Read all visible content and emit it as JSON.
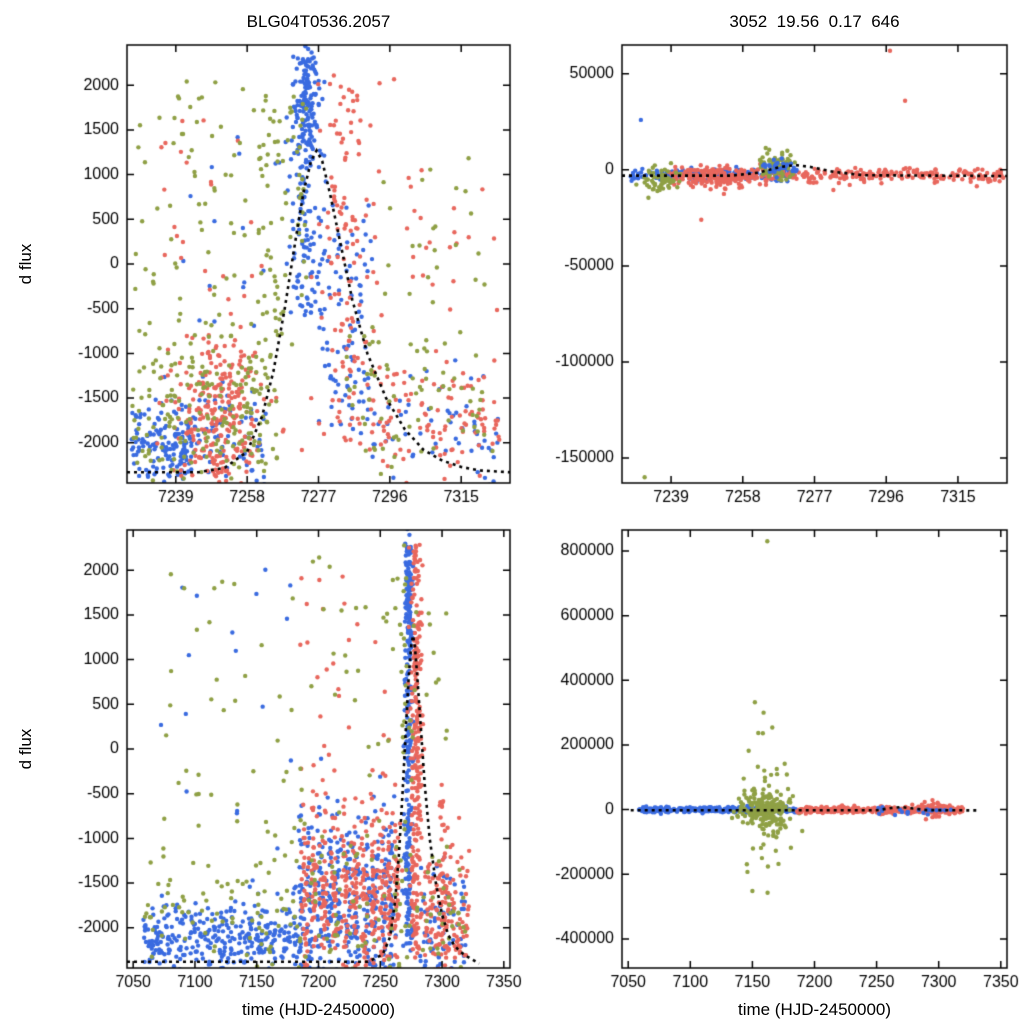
{
  "colors": {
    "blue": "#3a6be0",
    "red": "#e8675d",
    "green": "#8fa045",
    "model": "#000000",
    "axis": "#000000",
    "background": "#ffffff"
  },
  "labels": {
    "title_left": "BLG04T0536.2057",
    "title_right": "3052  19.56  0.17  646",
    "ylabel": "d flux",
    "xlabel": "time (HJD-2450000)"
  },
  "chart_data": [
    {
      "id": "top-left",
      "type": "scatter",
      "title": "BLG04T0536.2057",
      "xlabel": "",
      "ylabel": "d flux",
      "xlim": [
        7226,
        7328
      ],
      "ylim": [
        -2450,
        2450
      ],
      "xticks": [
        7239,
        7258,
        7277,
        7296,
        7315
      ],
      "yticks": [
        -2000,
        -1500,
        -1000,
        -500,
        0,
        500,
        1000,
        1500,
        2000
      ],
      "grid": false,
      "legend": "none",
      "series_names": [
        "site-blue",
        "site-red",
        "site-green"
      ],
      "clusters": [
        {
          "c": "blue",
          "n": 160,
          "x": [
            "u",
            7227,
            7244
          ],
          "y": [
            "g",
            -2050,
            260
          ]
        },
        {
          "c": "blue",
          "n": 70,
          "x": [
            "u",
            7244,
            7263
          ],
          "y": [
            "g",
            -1950,
            300
          ]
        },
        {
          "c": "blue",
          "n": 170,
          "x": [
            "g",
            7273.5,
            2.2
          ],
          "y": [
            "u",
            -600,
            2300
          ]
        },
        {
          "c": "blue",
          "n": 90,
          "x": [
            "g",
            7274,
            1.6
          ],
          "y": [
            "g",
            1850,
            330
          ]
        },
        {
          "c": "blue",
          "n": 90,
          "x": [
            "u",
            7277,
            7292
          ],
          "y": [
            "u",
            -1900,
            700
          ]
        },
        {
          "c": "blue",
          "n": 60,
          "x": [
            "u",
            7290,
            7326
          ],
          "y": [
            "g",
            -1900,
            350
          ]
        },
        {
          "c": "blue",
          "n": 15,
          "x": [
            "u",
            7230,
            7268
          ],
          "y": [
            "u",
            -700,
            1600
          ]
        },
        {
          "c": "red",
          "n": 280,
          "x": [
            "g",
            7250,
            6
          ],
          "y": [
            "g",
            -1650,
            480
          ]
        },
        {
          "c": "red",
          "n": 20,
          "x": [
            "u",
            7235,
            7262
          ],
          "y": [
            "u",
            -700,
            2000
          ]
        },
        {
          "c": "red",
          "n": 130,
          "x": [
            "g",
            7284,
            3.5
          ],
          "y": [
            "u",
            -2100,
            2150
          ]
        },
        {
          "c": "red",
          "n": 110,
          "x": [
            "u",
            7290,
            7327
          ],
          "y": [
            "g",
            -1750,
            420
          ]
        },
        {
          "c": "red",
          "n": 25,
          "x": [
            "u",
            7292,
            7325
          ],
          "y": [
            "u",
            -600,
            1100
          ]
        },
        {
          "c": "green",
          "n": 240,
          "x": [
            "u",
            7227,
            7266
          ],
          "y": [
            "g",
            -1600,
            620
          ]
        },
        {
          "c": "green",
          "n": 60,
          "x": [
            "u",
            7228,
            7268
          ],
          "y": [
            "u",
            -500,
            2100
          ]
        },
        {
          "c": "green",
          "n": 70,
          "x": [
            "u",
            7261,
            7275
          ],
          "y": [
            "u",
            -900,
            1900
          ]
        },
        {
          "c": "green",
          "n": 80,
          "x": [
            "u",
            7284,
            7326
          ],
          "y": [
            "g",
            -1500,
            600
          ]
        },
        {
          "c": "green",
          "n": 20,
          "x": [
            "u",
            7286,
            7324
          ],
          "y": [
            "u",
            -400,
            1200
          ]
        }
      ],
      "points": [],
      "model": [
        [
          7226,
          -2330
        ],
        [
          7245,
          -2330
        ],
        [
          7252,
          -2280
        ],
        [
          7258,
          -2100
        ],
        [
          7262,
          -1700
        ],
        [
          7265,
          -1200
        ],
        [
          7268,
          -500
        ],
        [
          7271,
          300
        ],
        [
          7273,
          800
        ],
        [
          7275,
          1150
        ],
        [
          7276.5,
          1270
        ],
        [
          7278,
          1150
        ],
        [
          7280,
          800
        ],
        [
          7283,
          200
        ],
        [
          7286,
          -400
        ],
        [
          7290,
          -1000
        ],
        [
          7295,
          -1500
        ],
        [
          7300,
          -1850
        ],
        [
          7305,
          -2080
        ],
        [
          7310,
          -2200
        ],
        [
          7315,
          -2270
        ],
        [
          7320,
          -2310
        ],
        [
          7328,
          -2330
        ]
      ]
    },
    {
      "id": "top-right",
      "type": "scatter",
      "title": "3052  19.56  0.17  646",
      "xlabel": "",
      "ylabel": "",
      "xlim": [
        7226,
        7328
      ],
      "ylim": [
        -163000,
        65000
      ],
      "xticks": [
        7239,
        7258,
        7277,
        7296,
        7315
      ],
      "yticks": [
        -150000,
        -100000,
        -50000,
        0,
        50000
      ],
      "grid": false,
      "legend": "none",
      "series_names": [
        "site-blue",
        "site-red",
        "site-green"
      ],
      "clusters": [
        {
          "c": "blue",
          "n": 190,
          "x": [
            "u",
            7228,
            7272
          ],
          "y": [
            "g",
            -2500,
            1600
          ]
        },
        {
          "c": "red",
          "n": 320,
          "x": [
            "u",
            7238,
            7327
          ],
          "y": [
            "g",
            -2600,
            1800
          ]
        },
        {
          "c": "red",
          "n": 120,
          "x": [
            "g",
            7251,
            5
          ],
          "y": [
            "g",
            -4500,
            2800
          ]
        },
        {
          "c": "green",
          "n": 55,
          "x": [
            "g",
            7236,
            2.5
          ],
          "y": [
            "g",
            -4500,
            3200
          ]
        },
        {
          "c": "green",
          "n": 75,
          "x": [
            "g",
            7267,
            2.5
          ],
          "y": [
            "g",
            1500,
            3500
          ]
        },
        {
          "c": "blue",
          "n": 30,
          "x": [
            "g",
            7268,
            3
          ],
          "y": [
            "g",
            1200,
            2200
          ]
        }
      ],
      "points": [
        [
          "green",
          7232,
          -160000
        ],
        [
          "green",
          7233,
          -14500
        ],
        [
          "green",
          7236,
          -10500
        ],
        [
          "green",
          7265,
          10500
        ],
        [
          "red",
          7247,
          -26000
        ],
        [
          "red",
          7253,
          -12500
        ],
        [
          "red",
          7297,
          62000
        ],
        [
          "red",
          7301,
          36000
        ],
        [
          "red",
          7282,
          -10500
        ],
        [
          "red",
          7320,
          -8500
        ],
        [
          "blue",
          7231,
          26000
        ]
      ],
      "model": [
        [
          7226,
          -3000
        ],
        [
          7255,
          -3000
        ],
        [
          7262,
          -1500
        ],
        [
          7268,
          1500
        ],
        [
          7272,
          2500
        ],
        [
          7276,
          1500
        ],
        [
          7282,
          -1000
        ],
        [
          7290,
          -2800
        ],
        [
          7328,
          -3200
        ]
      ]
    },
    {
      "id": "bottom-left",
      "type": "scatter",
      "title": "",
      "xlabel": "time (HJD-2450000)",
      "ylabel": "d flux",
      "xlim": [
        7045,
        7355
      ],
      "ylim": [
        -2450,
        2450
      ],
      "xticks": [
        7050,
        7100,
        7150,
        7200,
        7250,
        7300,
        7350
      ],
      "yticks": [
        -2000,
        -1500,
        -1000,
        -500,
        0,
        500,
        1000,
        1500,
        2000
      ],
      "grid": false,
      "legend": "none",
      "series_names": [
        "site-blue",
        "site-red",
        "site-green"
      ],
      "clusters": [
        {
          "c": "blue",
          "n": 320,
          "x": [
            "u",
            7058,
            7185
          ],
          "y": [
            "g",
            -2100,
            190
          ]
        },
        {
          "c": "blue",
          "n": 18,
          "x": [
            "u",
            7062,
            7180
          ],
          "y": [
            "u",
            -1600,
            2050
          ]
        },
        {
          "c": "blue",
          "n": 38,
          "x": [
            "comb",
            [
              7186,
              7193,
              7201,
              7209,
              7216,
              7224,
              7231,
              7239,
              7246,
              7253,
              7259
            ],
            1.3
          ],
          "y": [
            "g",
            -1750,
            560
          ]
        },
        {
          "c": "blue",
          "n": 240,
          "x": [
            "g",
            7273,
            1.8
          ],
          "y": [
            "u",
            -2350,
            2300
          ]
        },
        {
          "c": "blue",
          "n": 50,
          "x": [
            "g",
            7273,
            1.4
          ],
          "y": [
            "g",
            1800,
            350
          ]
        },
        {
          "c": "blue",
          "n": 70,
          "x": [
            "u",
            7282,
            7320
          ],
          "y": [
            "g",
            -1950,
            330
          ]
        },
        {
          "c": "red",
          "n": 42,
          "x": [
            "comb",
            [
              7189,
              7197,
              7205,
              7213,
              7221,
              7229,
              7237,
              7244,
              7251,
              7257,
              7263
            ],
            1.5
          ],
          "y": [
            "g",
            -1600,
            520
          ]
        },
        {
          "c": "red",
          "n": 25,
          "x": [
            "u",
            7185,
            7262
          ],
          "y": [
            "u",
            -300,
            2100
          ]
        },
        {
          "c": "red",
          "n": 260,
          "x": [
            "g",
            7279,
            2.2
          ],
          "y": [
            "u",
            -2350,
            2300
          ]
        },
        {
          "c": "red",
          "n": 140,
          "x": [
            "u",
            7286,
            7322
          ],
          "y": [
            "g",
            -1850,
            420
          ]
        },
        {
          "c": "red",
          "n": 35,
          "x": [
            "g",
            7301,
            2
          ],
          "y": [
            "u",
            -2300,
            -400
          ]
        },
        {
          "c": "green",
          "n": 190,
          "x": [
            "u",
            7058,
            7322
          ],
          "y": [
            "g",
            -1950,
            430
          ]
        },
        {
          "c": "green",
          "n": 85,
          "x": [
            "u",
            7075,
            7305
          ],
          "y": [
            "u",
            -1300,
            2250
          ]
        },
        {
          "c": "green",
          "n": 25,
          "x": [
            "g",
            7267,
            5
          ],
          "y": [
            "u",
            -400,
            2300
          ]
        }
      ],
      "points": [],
      "model": [
        [
          7045,
          -2380
        ],
        [
          7240,
          -2380
        ],
        [
          7252,
          -2300
        ],
        [
          7258,
          -2100
        ],
        [
          7262,
          -1700
        ],
        [
          7265,
          -1200
        ],
        [
          7268,
          -500
        ],
        [
          7271,
          300
        ],
        [
          7273,
          800
        ],
        [
          7275,
          1150
        ],
        [
          7276.5,
          1270
        ],
        [
          7278,
          1150
        ],
        [
          7280,
          800
        ],
        [
          7283,
          200
        ],
        [
          7286,
          -400
        ],
        [
          7290,
          -1000
        ],
        [
          7295,
          -1500
        ],
        [
          7300,
          -1850
        ],
        [
          7305,
          -2080
        ],
        [
          7310,
          -2200
        ],
        [
          7315,
          -2270
        ],
        [
          7320,
          -2320
        ],
        [
          7330,
          -2400
        ]
      ]
    },
    {
      "id": "bottom-right",
      "type": "scatter",
      "title": "",
      "xlabel": "time (HJD-2450000)",
      "ylabel": "",
      "xlim": [
        7045,
        7355
      ],
      "ylim": [
        -490000,
        865000
      ],
      "xticks": [
        7050,
        7100,
        7150,
        7200,
        7250,
        7300,
        7350
      ],
      "yticks": [
        -400000,
        -200000,
        0,
        200000,
        400000,
        600000,
        800000
      ],
      "grid": false,
      "legend": "none",
      "series_names": [
        "site-blue",
        "site-red",
        "site-green"
      ],
      "clusters": [
        {
          "c": "blue",
          "n": 280,
          "x": [
            "u",
            7058,
            7186
          ],
          "y": [
            "g",
            0,
            4500
          ]
        },
        {
          "c": "green",
          "n": 230,
          "x": [
            "g",
            7160,
            11
          ],
          "y": [
            "g",
            0,
            26000
          ]
        },
        {
          "c": "green",
          "n": 45,
          "x": [
            "g",
            7161,
            9
          ],
          "y": [
            "g",
            0,
            110000
          ]
        },
        {
          "c": "red",
          "n": 420,
          "x": [
            "u",
            7186,
            7320
          ],
          "y": [
            "g",
            -1500,
            5000
          ]
        },
        {
          "c": "red",
          "n": 55,
          "x": [
            "g",
            7295,
            6
          ],
          "y": [
            "g",
            0,
            14000
          ]
        },
        {
          "c": "blue",
          "n": 20,
          "x": [
            "u",
            7250,
            7310
          ],
          "y": [
            "g",
            -2000,
            6000
          ]
        }
      ],
      "points": [
        [
          "green",
          7162,
          830000
        ],
        [
          "green",
          7152,
          332000
        ],
        [
          "green",
          7159,
          300000
        ],
        [
          "green",
          7166,
          254000
        ],
        [
          "green",
          7147,
          182000
        ],
        [
          "green",
          7150,
          -252000
        ],
        [
          "green",
          7171,
          -168000
        ],
        [
          "green",
          7176,
          142000
        ],
        [
          "green",
          7181,
          -118000
        ],
        [
          "green",
          7143,
          96000
        ]
      ],
      "model": [
        [
          7052,
          -2000
        ],
        [
          7250,
          -2000
        ],
        [
          7262,
          5000
        ],
        [
          7270,
          8000
        ],
        [
          7278,
          4000
        ],
        [
          7290,
          -1500
        ],
        [
          7332,
          -2500
        ]
      ]
    }
  ]
}
